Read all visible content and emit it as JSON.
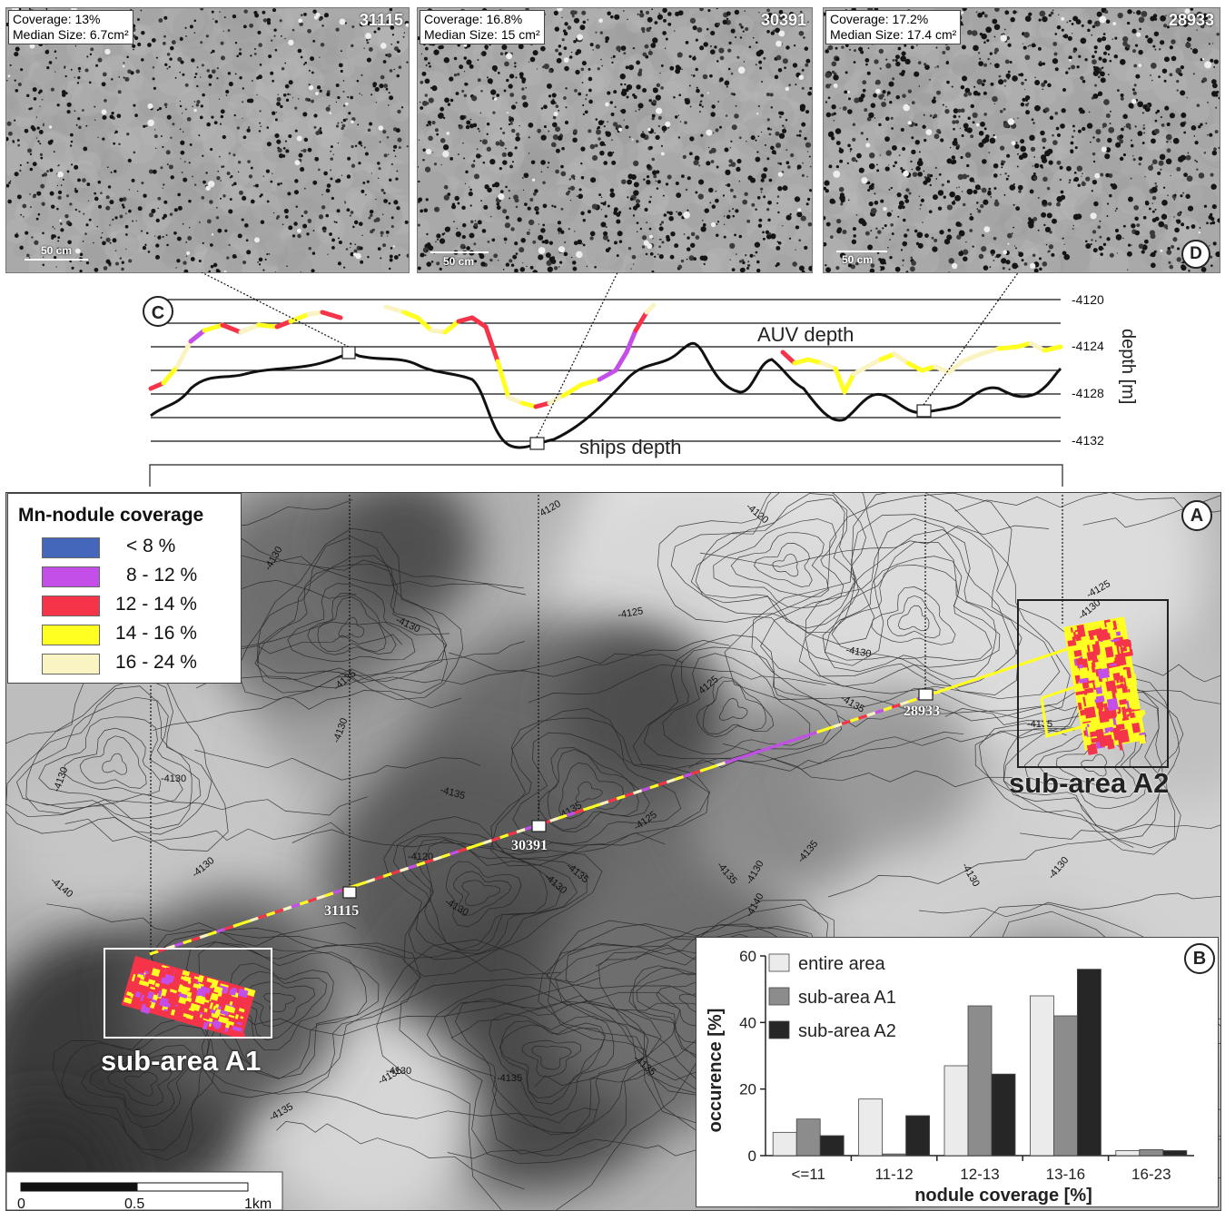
{
  "photos": [
    {
      "coverage": "Coverage: 13%",
      "median_size": "Median Size: 6.7cm²",
      "id": "31115",
      "scale": "50 cm"
    },
    {
      "coverage": "Coverage: 16.8%",
      "median_size": "Median Size: 15 cm²",
      "id": "30391",
      "scale": "50 cm"
    },
    {
      "coverage": "Coverage: 17.2%",
      "median_size": "Median Size: 17.4 cm²",
      "id": "28933",
      "scale": "50 cm"
    }
  ],
  "panel_labels": {
    "a": "A",
    "b": "B",
    "c": "C",
    "d": "D"
  },
  "profile": {
    "auv_label": "AUV depth",
    "ships_label": "ships depth",
    "y_axis_label": "depth [m]",
    "ticks": [
      "-4120",
      "-4124",
      "-4128",
      "-4132"
    ],
    "sample_points": [
      "31115",
      "30391",
      "28933"
    ]
  },
  "legend": {
    "title": "Mn-nodule coverage",
    "items": [
      {
        "label": "< 8 %",
        "color": "#4466bb"
      },
      {
        "label": "8 - 12 %",
        "color": "#c44ee8"
      },
      {
        "label": "12 - 14 %",
        "color": "#f5344a"
      },
      {
        "label": "14 - 16 %",
        "color": "#ffff22"
      },
      {
        "label": "16 - 24 %",
        "color": "#faf3c2"
      }
    ]
  },
  "map": {
    "sub_area_a1": "sub-area A1",
    "sub_area_a2": "sub-area A2",
    "contour_labels": [
      "4120",
      "-4120",
      "-4125",
      "-4125",
      "-4130",
      "-4135",
      "-4135",
      "-4130",
      "-4130",
      "-4130",
      "-4130",
      "-4140",
      "-4135",
      "-4130",
      "-4125",
      "-4120",
      "4125",
      "-4130",
      "-4130",
      "-4135",
      "-4135",
      "-4130",
      "-4130",
      "-4135",
      "-4135",
      "-4130",
      "-4135",
      "-4140",
      "-4135",
      "-4130",
      "-4135",
      "-4135",
      "-4135",
      "-4130",
      "-4130"
    ],
    "scale_bar": {
      "ticks": [
        "0",
        "0.5",
        "1km"
      ]
    }
  },
  "chart_data": {
    "type": "bar",
    "title": "",
    "xlabel": "nodule coverage [%]",
    "ylabel": "occurence [%]",
    "ylim": [
      0,
      60
    ],
    "yticks": [
      0,
      20,
      40,
      60
    ],
    "categories": [
      "<=11",
      "11-12",
      "12-13",
      "13-16",
      "16-23"
    ],
    "series": [
      {
        "name": "entire area",
        "color": "#ebebeb",
        "values": [
          7,
          17,
          27,
          48,
          1.5
        ]
      },
      {
        "name": "sub-area A1",
        "color": "#8c8c8c",
        "values": [
          11,
          0.5,
          45,
          42,
          1.8
        ]
      },
      {
        "name": "sub-area A2",
        "color": "#262626",
        "values": [
          6,
          12,
          24.5,
          56,
          1.5
        ]
      }
    ],
    "legend_position": "top-left"
  }
}
